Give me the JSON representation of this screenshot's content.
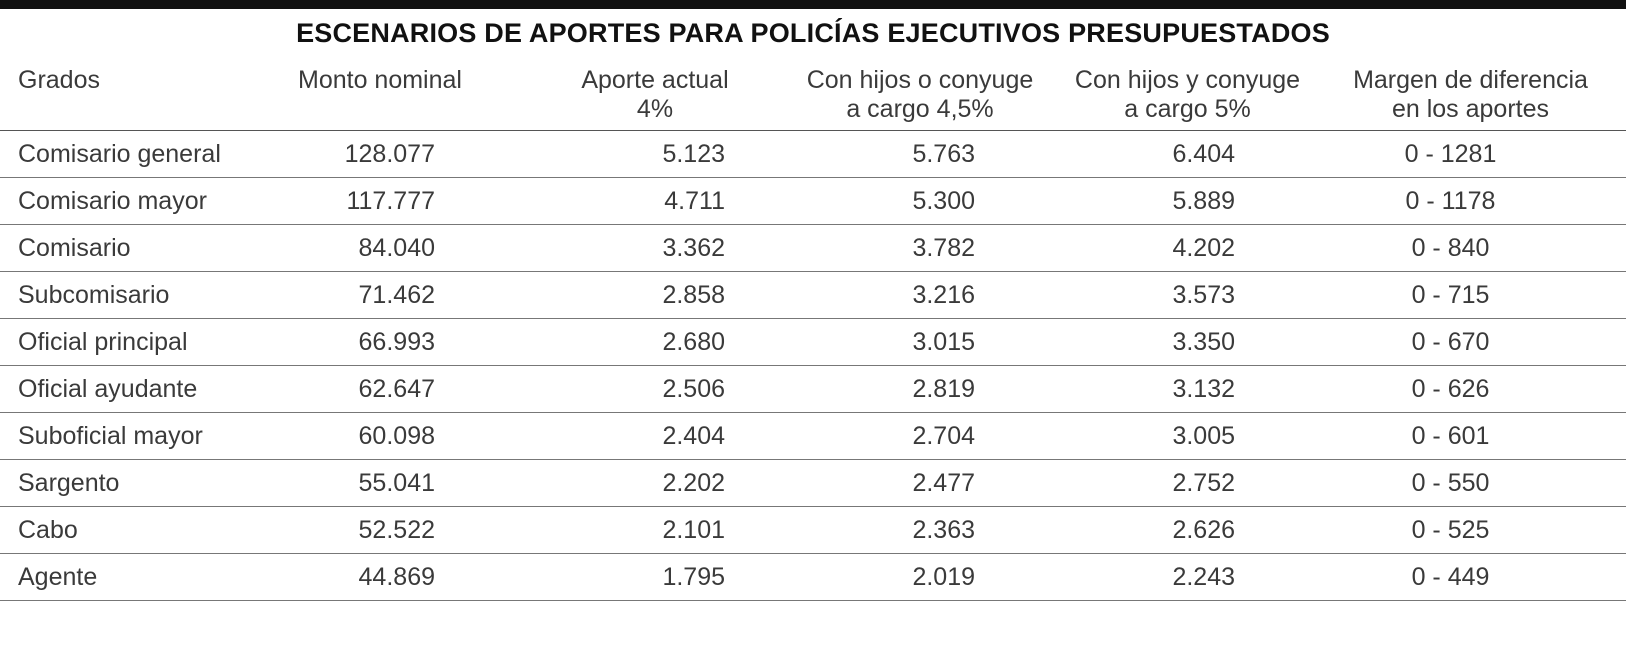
{
  "title": "ESCENARIOS DE APORTES PARA POLICÍAS EJECUTIVOS PRESUPUESTADOS",
  "headers": {
    "grados": "Grados",
    "monto": "Monto nominal",
    "actual_1": "Aporte actual",
    "actual_2": "4%",
    "h45_1": "Con hijos o conyuge",
    "h45_2": "a cargo 4,5%",
    "h5_1": "Con hijos y conyuge",
    "h5_2": "a cargo 5%",
    "margen_1": "Margen de diferencia",
    "margen_2": "en los aportes"
  },
  "chart_data": {
    "type": "table",
    "title": "ESCENARIOS DE APORTES PARA POLICÍAS EJECUTIVOS PRESUPUESTADOS",
    "columns": [
      "Grados",
      "Monto nominal",
      "Aporte actual 4%",
      "Con hijos o conyuge a cargo 4,5%",
      "Con hijos y conyuge a cargo 5%",
      "Margen de diferencia en los aportes"
    ],
    "rows": [
      [
        "Comisario general",
        "128.077",
        "5.123",
        "5.763",
        "6.404",
        "0 - 1281"
      ],
      [
        "Comisario mayor",
        "117.777",
        "4.711",
        "5.300",
        "5.889",
        "0 - 1178"
      ],
      [
        "Comisario",
        "84.040",
        "3.362",
        "3.782",
        "4.202",
        "0 - 840"
      ],
      [
        "Subcomisario",
        "71.462",
        "2.858",
        "3.216",
        "3.573",
        "0 - 715"
      ],
      [
        "Oficial principal",
        "66.993",
        "2.680",
        "3.015",
        "3.350",
        "0 - 670"
      ],
      [
        "Oficial ayudante",
        "62.647",
        "2.506",
        "2.819",
        "3.132",
        "0 - 626"
      ],
      [
        "Suboficial mayor",
        "60.098",
        "2.404",
        "2.704",
        "3.005",
        "0 - 601"
      ],
      [
        "Sargento",
        "55.041",
        "2.202",
        "2.477",
        "2.752",
        "0 - 550"
      ],
      [
        "Cabo",
        "52.522",
        "2.101",
        "2.363",
        "2.626",
        "0 - 525"
      ],
      [
        "Agente",
        "44.869",
        "1.795",
        "2.019",
        "2.243",
        "0 - 449"
      ]
    ]
  }
}
